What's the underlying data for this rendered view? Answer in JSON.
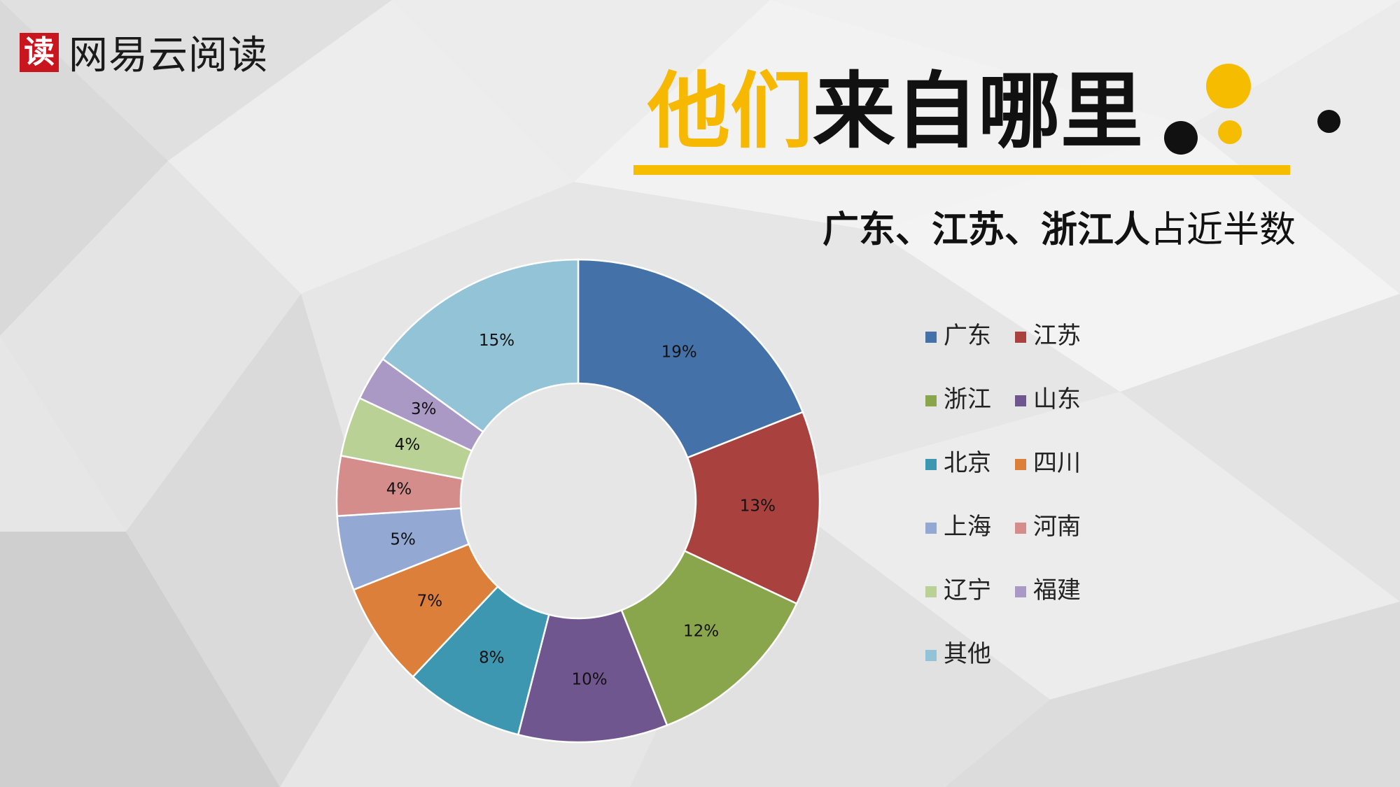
{
  "brand": {
    "mark": "读",
    "name": "网易云阅读"
  },
  "title": {
    "highlight": "他们",
    "rest": "来自哪里"
  },
  "subtitle": {
    "strong": "广东、江苏、浙江人",
    "rest": "占近半数"
  },
  "colors": {
    "accent": "#f6bd00",
    "dark": "#111111"
  },
  "chart_data": {
    "type": "pie",
    "style": "donut",
    "categories": [
      "广东",
      "江苏",
      "浙江",
      "山东",
      "北京",
      "四川",
      "上海",
      "河南",
      "辽宁",
      "福建",
      "其他"
    ],
    "values": [
      19,
      13,
      12,
      10,
      8,
      7,
      5,
      4,
      4,
      3,
      15
    ],
    "labels": [
      "19%",
      "13%",
      "12%",
      "10%",
      "8%",
      "7%",
      "5%",
      "4%",
      "4%",
      "3%",
      "15%"
    ],
    "colors": [
      "#4472a8",
      "#a9423f",
      "#8aa64c",
      "#6f568f",
      "#3e97b0",
      "#db7f3a",
      "#93a9d4",
      "#d58d8c",
      "#b9d195",
      "#a999c4",
      "#92c3d6"
    ],
    "legend_position": "right",
    "start": "top",
    "direction": "clockwise"
  }
}
